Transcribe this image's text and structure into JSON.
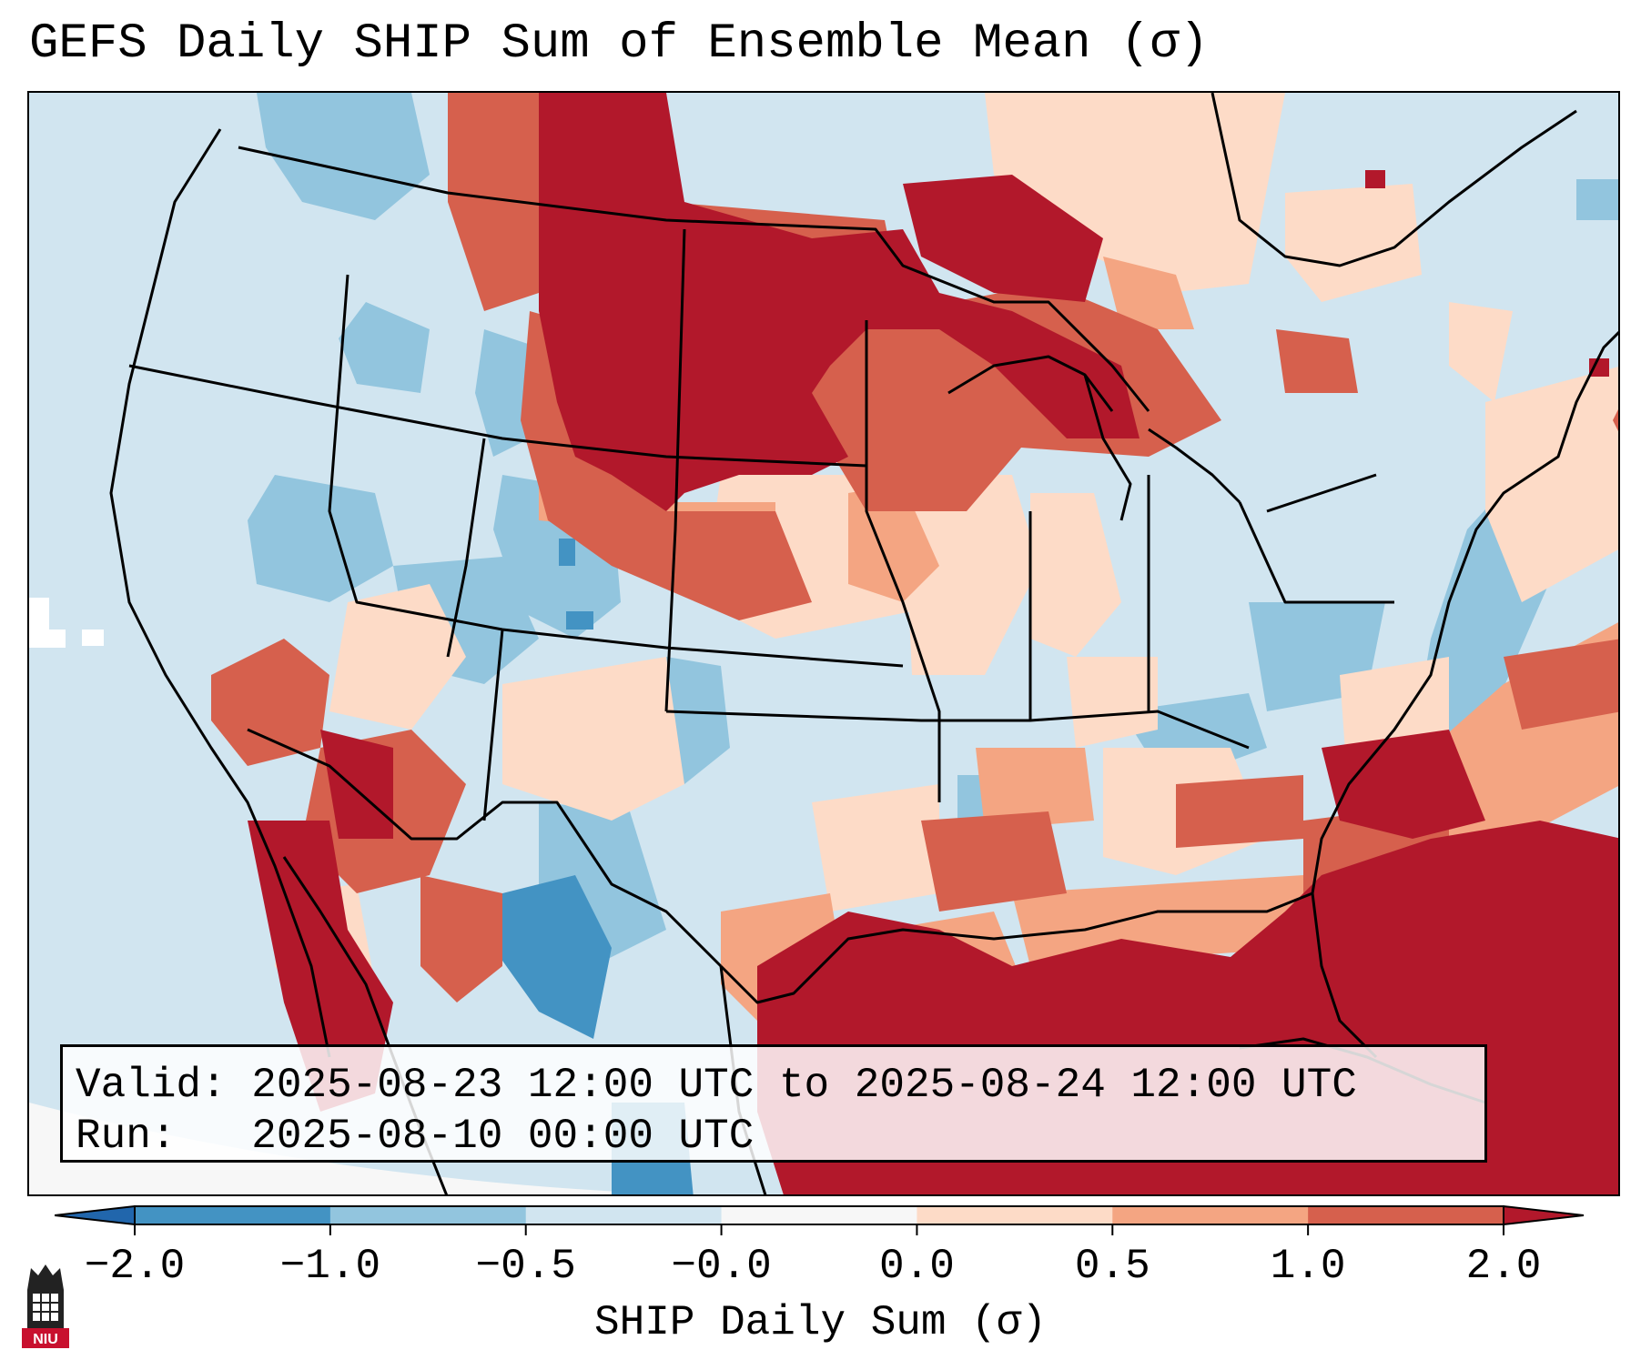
{
  "title": "GEFS Daily SHIP Sum of Ensemble Mean (σ)",
  "info": {
    "valid_label": "Valid:",
    "valid_value": "2025-08-23 12:00 UTC to 2025-08-24 12:00 UTC",
    "run_label": "Run:",
    "run_value": "2025-08-10 00:00 UTC"
  },
  "colorbar": {
    "label": "SHIP Daily Sum (σ)",
    "ticks": [
      "−2.0",
      "−1.0",
      "−0.5",
      "−0.0",
      "0.0",
      "0.5",
      "1.0",
      "2.0"
    ],
    "bins": [
      {
        "from": -2.0,
        "to": -1.0,
        "color": "#4393c3"
      },
      {
        "from": -1.0,
        "to": -0.5,
        "color": "#92c5de"
      },
      {
        "from": -0.5,
        "to": 0.0,
        "color": "#d1e5f0"
      },
      {
        "from": 0.0,
        "to": 0.0,
        "color": "#f7f7f7"
      },
      {
        "from": 0.0,
        "to": 0.5,
        "color": "#fddbc7"
      },
      {
        "from": 0.5,
        "to": 1.0,
        "color": "#f4a582"
      },
      {
        "from": 1.0,
        "to": 2.0,
        "color": "#d6604d"
      }
    ],
    "under_color": "#2166ac",
    "over_color": "#b2182b"
  },
  "logo": {
    "text": "NIU"
  },
  "colors": {
    "neg2": "#4393c3",
    "neg1": "#92c5de",
    "neg05": "#d1e5f0",
    "pos05": "#fddbc7",
    "pos1": "#f4a582",
    "pos2": "#d6604d",
    "pos3": "#b2182b"
  }
}
